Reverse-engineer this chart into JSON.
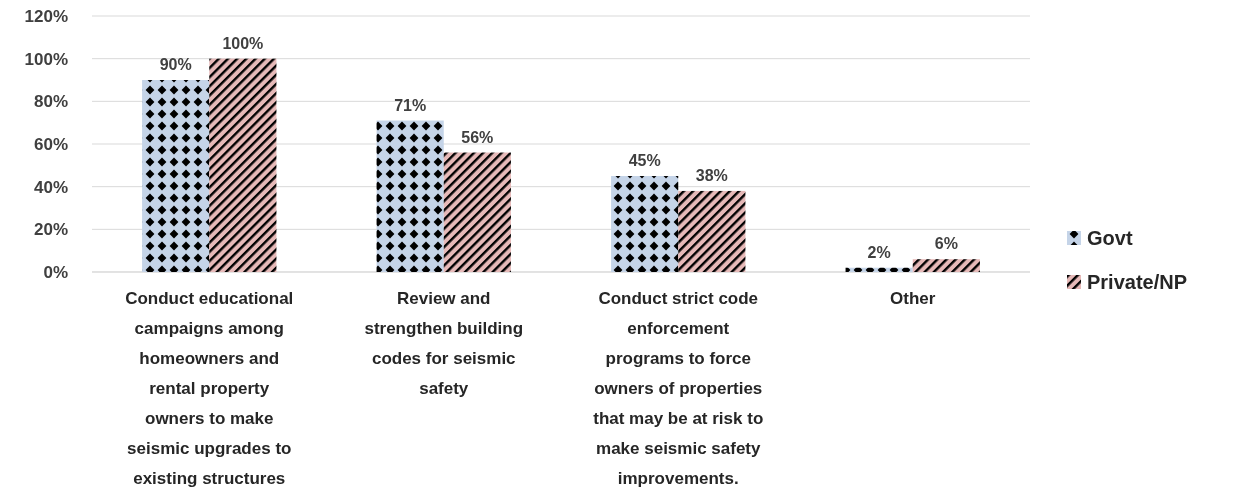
{
  "chart_data": {
    "type": "bar",
    "categories": [
      "Conduct educational campaigns among homeowners and rental property owners to make seismic upgrades to existing structures",
      "Review and strengthen building codes for seismic safety",
      "Conduct strict code enforcement programs to force owners of properties that may be at risk to make seismic safety improvements.",
      "Other"
    ],
    "series": [
      {
        "name": "Govt",
        "color": "#c5d4e8",
        "values": [
          90,
          71,
          45,
          2
        ],
        "value_labels": [
          "90%",
          "71%",
          "45%",
          "2%"
        ]
      },
      {
        "name": "Private/NP",
        "color": "#e6b9b8",
        "values": [
          100,
          56,
          38,
          6
        ],
        "value_labels": [
          "100%",
          "56%",
          "38%",
          "6%"
        ]
      }
    ],
    "ylim": [
      0,
      120
    ],
    "yticks": [
      {
        "value": 0,
        "label": "0%"
      },
      {
        "value": 20,
        "label": "20%"
      },
      {
        "value": 40,
        "label": "40%"
      },
      {
        "value": 60,
        "label": "60%"
      },
      {
        "value": 80,
        "label": "80%"
      },
      {
        "value": 100,
        "label": "100%"
      },
      {
        "value": 120,
        "label": "120%"
      }
    ],
    "grid": "y",
    "legend": "right"
  }
}
